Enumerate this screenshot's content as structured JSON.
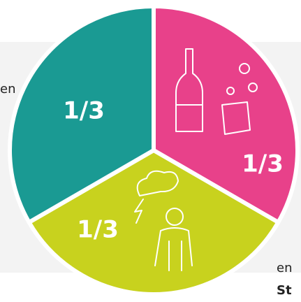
{
  "chart_data": {
    "type": "pie",
    "categories": [
      null,
      null,
      null
    ],
    "values": [
      0.3333,
      0.3333,
      0.3333
    ],
    "value_labels": [
      "1/3",
      "1/3",
      "1/3"
    ],
    "colors": [
      "#e8418a",
      "#c8d21e",
      "#1a9a93"
    ],
    "start_angle": -90
  },
  "fragments": {
    "left": "en",
    "bottom_right_1": "en",
    "bottom_right_2": "St"
  }
}
